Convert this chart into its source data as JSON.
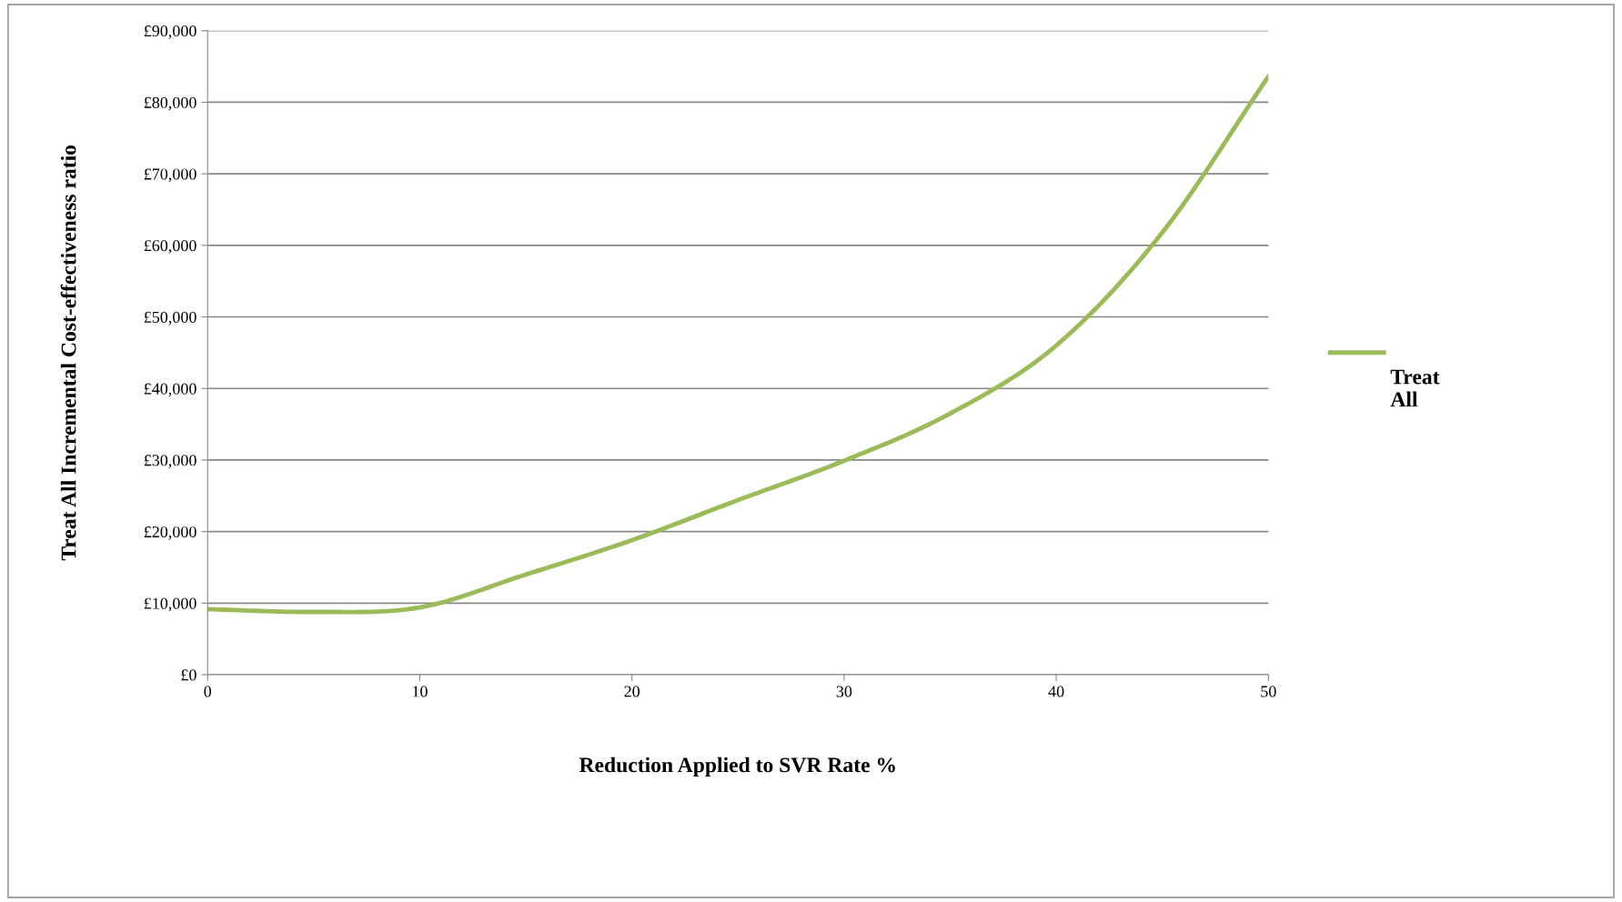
{
  "chart_data": {
    "type": "line",
    "xlabel": "Reduction Applied to SVR Rate %",
    "ylabel": "Treat All Incremental Cost-effectiveness ratio",
    "x": [
      0,
      5,
      10,
      15,
      20,
      25,
      30,
      35,
      40,
      45,
      50
    ],
    "series": [
      {
        "name": "Treat All",
        "color": "#9bbb59",
        "values": [
          9150,
          8770,
          9400,
          14000,
          18800,
          24400,
          29900,
          36500,
          46000,
          61800,
          83600
        ]
      }
    ],
    "xlim": [
      0,
      50
    ],
    "xticks": [
      0,
      10,
      20,
      30,
      40,
      50
    ],
    "ylim": [
      0,
      90000
    ],
    "yticks": [
      {
        "value": 0,
        "label": "£0"
      },
      {
        "value": 10000,
        "label": "£10,000"
      },
      {
        "value": 20000,
        "label": "£20,000"
      },
      {
        "value": 30000,
        "label": "£30,000"
      },
      {
        "value": 40000,
        "label": "£40,000"
      },
      {
        "value": 50000,
        "label": "£50,000"
      },
      {
        "value": 60000,
        "label": "£60,000"
      },
      {
        "value": 70000,
        "label": "£70,000"
      },
      {
        "value": 80000,
        "label": "£80,000"
      },
      {
        "value": 90000,
        "label": "£90,000"
      }
    ],
    "grid": "y",
    "legend": "right",
    "marker": "none",
    "line_style": "solid"
  }
}
